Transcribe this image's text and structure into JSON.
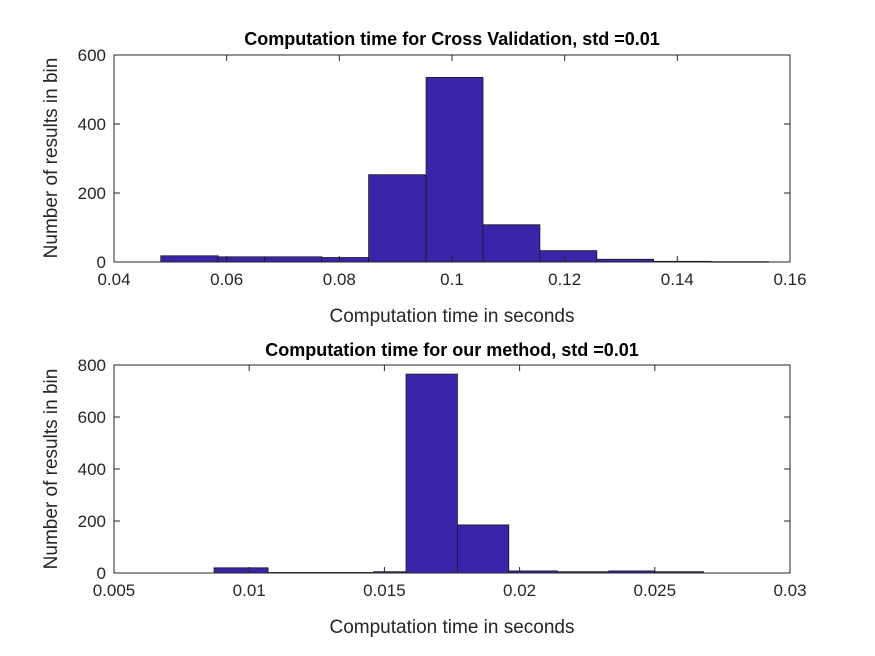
{
  "chart_data": [
    {
      "type": "bar",
      "title": "Computation time for Cross Validation, std =0.01",
      "xlabel": "Computation time in seconds",
      "ylabel": "Number of results in bin",
      "xlim": [
        0.04,
        0.16
      ],
      "ylim": [
        0,
        600
      ],
      "xticks": [
        "0.04",
        "0.06",
        "0.08",
        "0.1",
        "0.12",
        "0.14",
        "0.16"
      ],
      "yticks": [
        "0",
        "200",
        "400",
        "600"
      ],
      "bin_edges": [
        0.0483,
        0.0585,
        0.0667,
        0.0769,
        0.0852,
        0.0954,
        0.1055,
        0.1156,
        0.1257,
        0.1358,
        0.146,
        0.1562
      ],
      "values": [
        18,
        15,
        15,
        13,
        253,
        535,
        108,
        33,
        8,
        2,
        1
      ],
      "grid": false,
      "color": "#3b24aa"
    },
    {
      "type": "bar",
      "title": "Computation time for our method, std =0.01",
      "xlabel": "Computation time in seconds",
      "ylabel": "Number of results in bin",
      "xlim": [
        0.005,
        0.03
      ],
      "ylim": [
        0,
        800
      ],
      "xticks": [
        "0.005",
        "0.01",
        "0.015",
        "0.02",
        "0.025",
        "0.03"
      ],
      "yticks": [
        "0",
        "200",
        "400",
        "600",
        "800"
      ],
      "bin_edges": [
        0.0087,
        0.0107,
        0.0126,
        0.0146,
        0.0158,
        0.0177,
        0.0196,
        0.0214,
        0.0233,
        0.025,
        0.0268
      ],
      "values": [
        20,
        2,
        2,
        5,
        765,
        185,
        8,
        5,
        8,
        5
      ],
      "grid": false,
      "color": "#3b24aa"
    }
  ]
}
